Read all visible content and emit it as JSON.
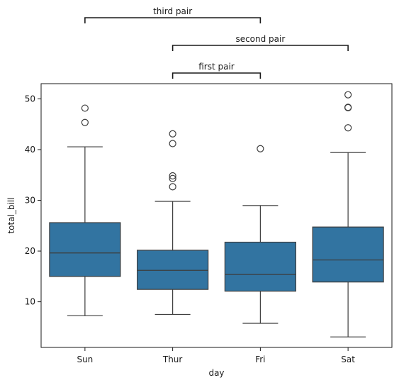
{
  "chart_data": {
    "type": "box",
    "title": "",
    "xlabel": "day",
    "ylabel": "total_bill",
    "categories": [
      "Sun",
      "Thur",
      "Fri",
      "Sat"
    ],
    "ylim": [
      1.0,
      53.0
    ],
    "yticks": [
      10,
      20,
      30,
      40,
      50
    ],
    "grid": false,
    "box_color": "#3274a1",
    "line_color": "#3d3d3d",
    "boxes": [
      {
        "category": "Sun",
        "whisker_low": 7.25,
        "q1": 14.99,
        "median": 19.63,
        "q3": 25.6,
        "whisker_high": 40.55,
        "outliers": [
          48.17,
          45.35
        ]
      },
      {
        "category": "Thur",
        "whisker_low": 7.51,
        "q1": 12.44,
        "median": 16.2,
        "q3": 20.16,
        "whisker_high": 29.8,
        "outliers": [
          43.11,
          41.19,
          34.83,
          34.3,
          32.68
        ]
      },
      {
        "category": "Fri",
        "whisker_low": 5.75,
        "q1": 12.09,
        "median": 15.38,
        "q3": 21.75,
        "whisker_high": 28.97,
        "outliers": [
          40.17
        ]
      },
      {
        "category": "Sat",
        "whisker_low": 3.07,
        "q1": 13.9,
        "median": 18.24,
        "q3": 24.74,
        "whisker_high": 39.42,
        "outliers": [
          50.81,
          48.33,
          48.27,
          44.3
        ]
      }
    ],
    "annotations": [
      {
        "label": "first pair",
        "from": "Thur",
        "to": "Fri"
      },
      {
        "label": "second pair",
        "from": "Thur",
        "to": "Sat"
      },
      {
        "label": "third pair",
        "from": "Sun",
        "to": "Fri"
      }
    ]
  }
}
